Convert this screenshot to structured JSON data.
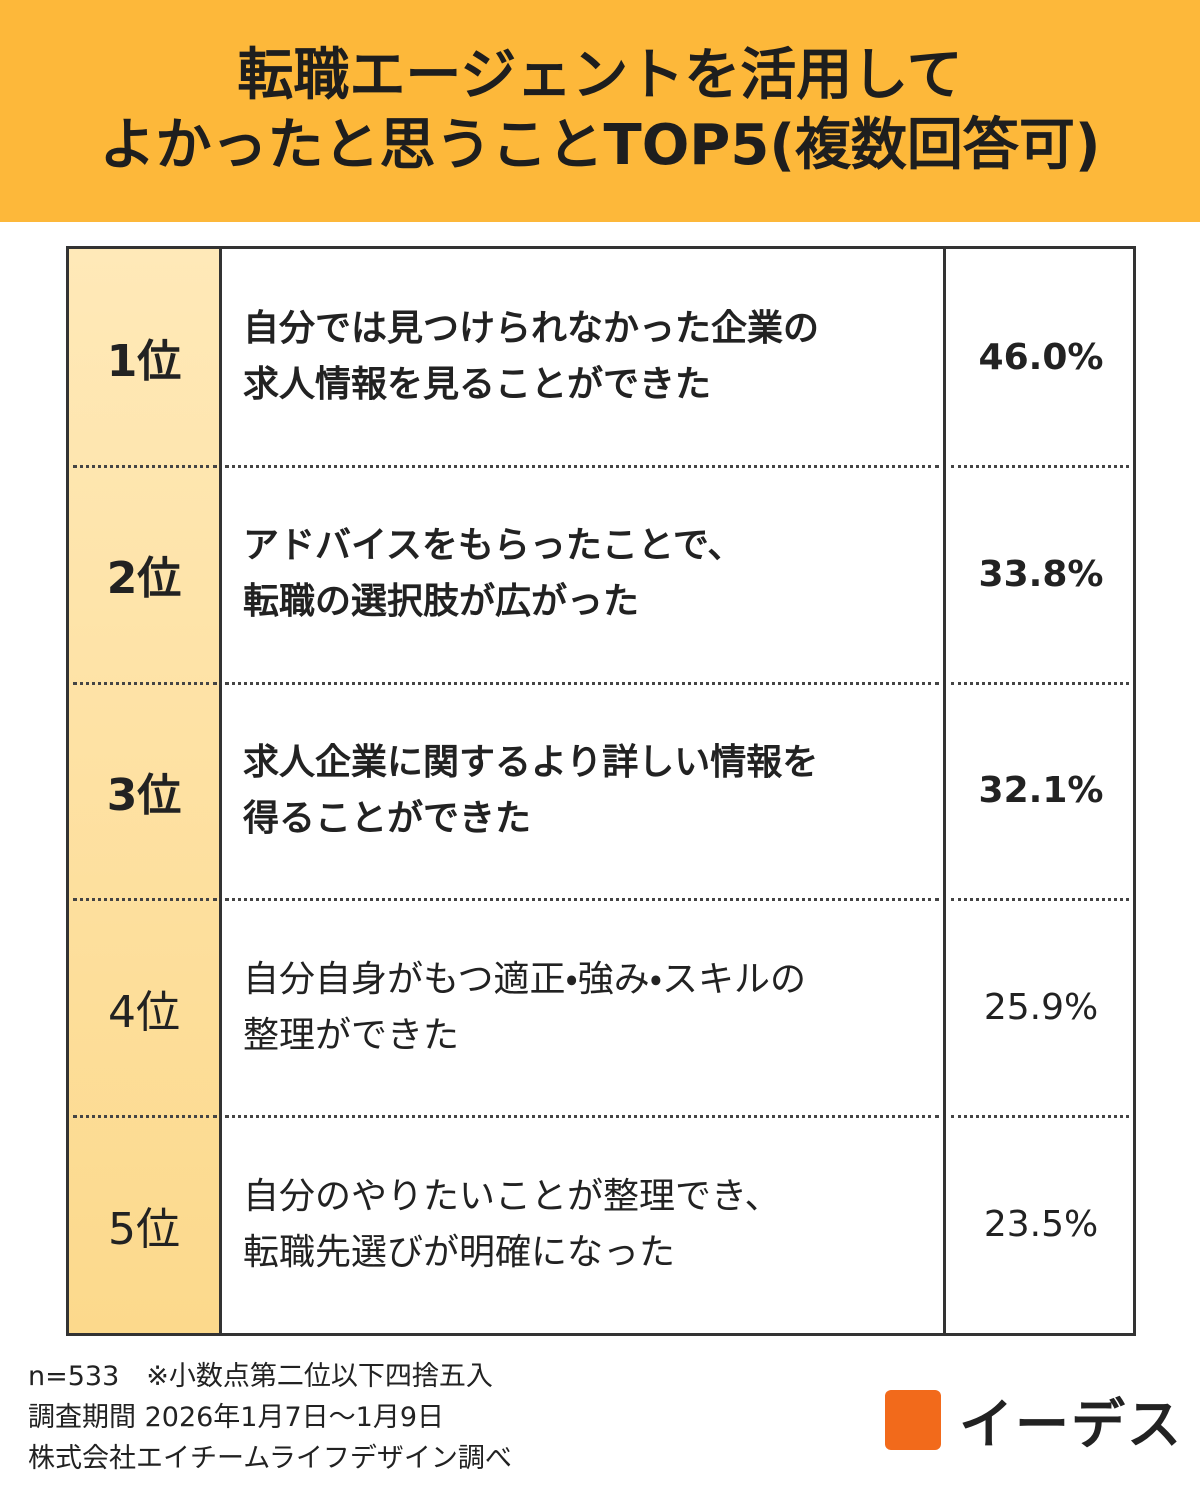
{
  "header": {
    "title_lines": [
      "転職エージェントを活用して",
      "よかったと思うことTOP5(複数回答可)"
    ]
  },
  "table": {
    "rows": [
      {
        "rank": "1位",
        "text_lines": [
          "自分では見つけられなかった企業の",
          "求人情報を見ることができた"
        ],
        "value": "46.0%"
      },
      {
        "rank": "2位",
        "text_lines": [
          "アドバイスをもらったことで、",
          "転職の選択肢が広がった"
        ],
        "value": "33.8%"
      },
      {
        "rank": "3位",
        "text_lines": [
          "求人企業に関するより詳しい情報を",
          "得ることができた"
        ],
        "value": "32.1%"
      },
      {
        "rank": "4位",
        "text_lines": [
          "自分自身がもつ適正・強み・スキルの",
          "整理ができた"
        ],
        "value": "25.9%"
      },
      {
        "rank": "5位",
        "text_lines": [
          "自分のやりたいことが整理でき、",
          "転職先選びが明確になった"
        ],
        "value": "23.5%"
      }
    ]
  },
  "footer": {
    "notes": [
      "n=533　※小数点第二位以下四捨五入",
      "調査期間 2026年1月7日〜1月9日",
      "株式会社エイチームライフデザイン調べ"
    ],
    "logo": "イーデス"
  }
}
